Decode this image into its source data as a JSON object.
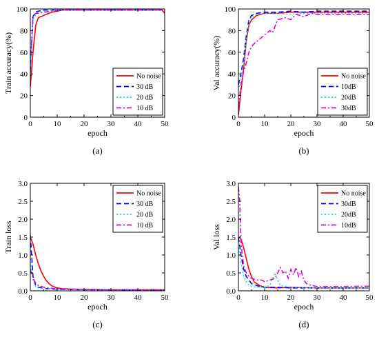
{
  "chart_data": [
    {
      "type": "line",
      "panel_label": "(a)",
      "xlabel": "epoch",
      "ylabel": "Train accuracy(%)",
      "xlim": [
        0,
        50
      ],
      "ylim": [
        0,
        100
      ],
      "xticks": [
        0,
        10,
        20,
        30,
        40,
        50
      ],
      "yticks": [
        0,
        20,
        40,
        60,
        80,
        100
      ],
      "legend": "bottom-right",
      "series": [
        {
          "name": "No noise",
          "color": "#ff0000",
          "dash": "solid",
          "x": [
            0,
            1,
            2,
            3,
            5,
            8,
            12,
            20,
            30,
            40,
            49,
            50
          ],
          "y": [
            28,
            60,
            85,
            92,
            94,
            97,
            99,
            99,
            99,
            99,
            99,
            96
          ]
        },
        {
          "name": "30 dB",
          "color": "#0000ff",
          "dash": "dash",
          "x": [
            0,
            1,
            2,
            3,
            5,
            8,
            12,
            20,
            30,
            40,
            49,
            50
          ],
          "y": [
            42,
            93,
            97,
            98,
            99,
            99,
            99,
            99,
            99,
            99,
            99,
            99
          ]
        },
        {
          "name": "20 dB",
          "color": "#00e5ee",
          "dash": "dot",
          "x": [
            0,
            1,
            2,
            3,
            5,
            8,
            12,
            20,
            30,
            40,
            49,
            50
          ],
          "y": [
            40,
            90,
            95,
            97,
            98,
            99,
            99,
            99,
            99,
            99,
            99,
            98
          ]
        },
        {
          "name": "10 dB",
          "color": "#e600e6",
          "dash": "dashdot",
          "x": [
            0,
            1,
            2,
            3,
            5,
            8,
            12,
            20,
            30,
            40,
            49,
            50
          ],
          "y": [
            48,
            94,
            96,
            96,
            97,
            98,
            99,
            99,
            99,
            99,
            99,
            99
          ]
        }
      ]
    },
    {
      "type": "line",
      "panel_label": "(b)",
      "xlabel": "epoch",
      "ylabel": "Val accuracy(%)",
      "xlim": [
        0,
        50
      ],
      "ylim": [
        0,
        100
      ],
      "xticks": [
        0,
        10,
        20,
        30,
        40,
        50
      ],
      "yticks": [
        0,
        20,
        40,
        60,
        80,
        100
      ],
      "legend": "bottom-right",
      "series": [
        {
          "name": "No noise",
          "color": "#ff0000",
          "dash": "solid",
          "x": [
            0,
            1,
            2,
            3,
            4,
            5,
            7,
            10,
            15,
            20,
            25,
            30,
            40,
            50
          ],
          "y": [
            2,
            25,
            45,
            70,
            85,
            90,
            94,
            96,
            96,
            97,
            97,
            97,
            97,
            97
          ]
        },
        {
          "name": "10dB",
          "color": "#0000ff",
          "dash": "dash",
          "x": [
            0,
            1,
            2,
            3,
            4,
            5,
            7,
            10,
            15,
            20,
            25,
            30,
            40,
            50
          ],
          "y": [
            30,
            40,
            55,
            75,
            90,
            94,
            96,
            97,
            97,
            98,
            97,
            98,
            98,
            98
          ]
        },
        {
          "name": "20dB",
          "color": "#00e5ee",
          "dash": "dot",
          "x": [
            0,
            1,
            2,
            3,
            4,
            5,
            7,
            10,
            15,
            20,
            25,
            30,
            40,
            50
          ],
          "y": [
            25,
            35,
            50,
            72,
            88,
            93,
            95,
            96,
            96,
            95,
            96,
            96,
            96,
            96
          ]
        },
        {
          "name": "30dB",
          "color": "#e600e6",
          "dash": "dashdot",
          "x": [
            0,
            1,
            2,
            3,
            4,
            5,
            6,
            8,
            10,
            12,
            13,
            15,
            18,
            20,
            22,
            25,
            28,
            30,
            40,
            50
          ],
          "y": [
            10,
            30,
            42,
            50,
            60,
            65,
            68,
            72,
            76,
            80,
            78,
            90,
            92,
            90,
            95,
            93,
            96,
            95,
            95,
            95
          ]
        }
      ]
    },
    {
      "type": "line",
      "panel_label": "(c)",
      "xlabel": "epoch",
      "ylabel": "Train loss",
      "xlim": [
        0,
        50
      ],
      "ylim": [
        0,
        3.0
      ],
      "xticks": [
        0,
        10,
        20,
        30,
        40,
        50
      ],
      "yticks": [
        0.0,
        0.5,
        1.0,
        1.5,
        2.0,
        2.5,
        3.0
      ],
      "legend": "top-right",
      "series": [
        {
          "name": "No noise",
          "color": "#ff0000",
          "dash": "solid",
          "x": [
            0,
            1,
            2,
            3,
            4,
            5,
            6,
            7,
            8,
            10,
            12,
            15,
            20,
            30,
            40,
            50
          ],
          "y": [
            1.5,
            1.3,
            1.0,
            0.75,
            0.55,
            0.4,
            0.28,
            0.2,
            0.14,
            0.08,
            0.06,
            0.05,
            0.04,
            0.03,
            0.03,
            0.03
          ]
        },
        {
          "name": "30 dB",
          "color": "#0000ff",
          "dash": "dash",
          "x": [
            0,
            1,
            2,
            3,
            5,
            8,
            12,
            20,
            30,
            40,
            50
          ],
          "y": [
            1.55,
            0.4,
            0.15,
            0.1,
            0.07,
            0.05,
            0.04,
            0.03,
            0.03,
            0.02,
            0.02
          ]
        },
        {
          "name": "20 dB",
          "color": "#00e5ee",
          "dash": "dot",
          "x": [
            0,
            1,
            2,
            3,
            5,
            8,
            12,
            20,
            30,
            40,
            50
          ],
          "y": [
            0.9,
            0.3,
            0.12,
            0.08,
            0.06,
            0.05,
            0.04,
            0.03,
            0.03,
            0.02,
            0.02
          ]
        },
        {
          "name": "10 dB",
          "color": "#e600e6",
          "dash": "dashdot",
          "x": [
            0,
            1,
            2,
            3,
            5,
            8,
            12,
            20,
            30,
            40,
            50
          ],
          "y": [
            0.6,
            0.35,
            0.22,
            0.15,
            0.1,
            0.07,
            0.05,
            0.04,
            0.03,
            0.03,
            0.02
          ]
        }
      ]
    },
    {
      "type": "line",
      "panel_label": "(d)",
      "xlabel": "epoch",
      "ylabel": "Val loss",
      "xlim": [
        0,
        50
      ],
      "ylim": [
        0,
        3.0
      ],
      "xticks": [
        0,
        10,
        20,
        30,
        40,
        50
      ],
      "yticks": [
        0.0,
        0.5,
        1.0,
        1.5,
        2.0,
        2.5,
        3.0
      ],
      "legend": "top-right",
      "series": [
        {
          "name": "No noise",
          "color": "#ff0000",
          "dash": "solid",
          "x": [
            0,
            1,
            2,
            3,
            4,
            5,
            6,
            8,
            10,
            15,
            20,
            30,
            40,
            50
          ],
          "y": [
            1.5,
            1.45,
            1.2,
            0.9,
            0.6,
            0.4,
            0.25,
            0.15,
            0.1,
            0.08,
            0.1,
            0.08,
            0.08,
            0.08
          ]
        },
        {
          "name": "30dB",
          "color": "#0000ff",
          "dash": "dash",
          "x": [
            0,
            1,
            2,
            3,
            4,
            5,
            8,
            10,
            15,
            20,
            30,
            40,
            50
          ],
          "y": [
            1.5,
            1.0,
            0.6,
            0.4,
            0.3,
            0.2,
            0.12,
            0.1,
            0.1,
            0.08,
            0.08,
            0.08,
            0.08
          ]
        },
        {
          "name": "20dB",
          "color": "#00e5ee",
          "dash": "dot",
          "x": [
            0,
            1,
            2,
            3,
            4,
            5,
            8,
            10,
            12,
            14,
            15,
            16,
            20,
            30,
            40,
            50
          ],
          "y": [
            1.2,
            0.8,
            0.4,
            0.25,
            0.15,
            0.12,
            0.1,
            0.1,
            0.15,
            0.5,
            0.3,
            0.15,
            0.1,
            0.08,
            0.08,
            0.08
          ]
        },
        {
          "name": "10dB",
          "color": "#e600e6",
          "dash": "dashdot",
          "x": [
            0,
            0.5,
            1,
            2,
            3,
            4,
            5,
            7,
            9,
            10,
            12,
            14,
            16,
            17,
            18,
            19,
            20,
            21,
            22,
            23,
            24,
            25,
            26,
            28,
            30,
            40,
            50
          ],
          "y": [
            2.9,
            2.5,
            1.3,
            0.7,
            0.5,
            0.4,
            0.35,
            0.3,
            0.3,
            0.25,
            0.3,
            0.35,
            0.65,
            0.5,
            0.55,
            0.35,
            0.6,
            0.45,
            0.65,
            0.4,
            0.55,
            0.3,
            0.2,
            0.15,
            0.12,
            0.12,
            0.13
          ]
        }
      ]
    }
  ]
}
